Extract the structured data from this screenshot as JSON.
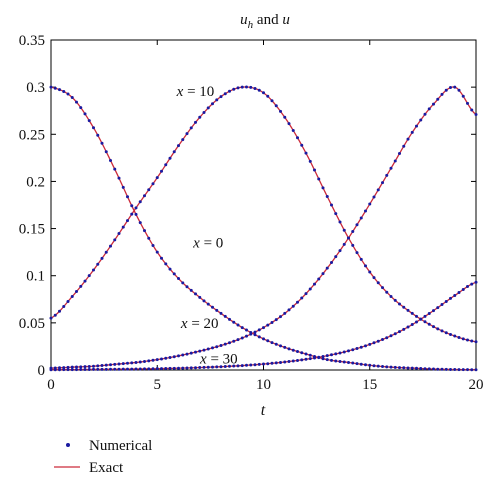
{
  "chart_data": {
    "type": "line",
    "title": "u_h and u",
    "title_parts": {
      "a": "u",
      "a_sub": "h",
      "mid": " and ",
      "b": "u"
    },
    "xlabel": "t",
    "ylabel": "",
    "xlim": [
      0,
      20
    ],
    "ylim": [
      0,
      0.35
    ],
    "xticks": [
      "0",
      "5",
      "10",
      "15",
      "20"
    ],
    "yticks": [
      "0",
      "0.05",
      "0.1",
      "0.15",
      "0.2",
      "0.25",
      "0.3",
      "0.35"
    ],
    "grid": false,
    "legend_placement": "bottom-left",
    "legend": [
      {
        "name": "Numerical",
        "marker": "dot",
        "color": "#1a1aa0"
      },
      {
        "name": "Exact",
        "marker": "line",
        "color": "#cc2a3a"
      }
    ],
    "series": [
      {
        "name": "x = 0",
        "x": [
          0,
          1,
          2,
          3,
          4,
          5,
          6,
          7,
          8,
          9,
          10,
          11,
          12,
          13,
          14,
          15,
          16,
          17,
          18,
          19,
          20
        ],
        "y": [
          0.3,
          0.289,
          0.257,
          0.213,
          0.165,
          0.125,
          0.097,
          0.077,
          0.06,
          0.045,
          0.033,
          0.024,
          0.017,
          0.011,
          0.008,
          0.005,
          0.003,
          0.002,
          0.001,
          0.0005,
          0.0003
        ]
      },
      {
        "name": "x = 10",
        "x": [
          0,
          1,
          2,
          3,
          4,
          5,
          6,
          7,
          8,
          9,
          10,
          11,
          12,
          13,
          14,
          15,
          16,
          17,
          18,
          19,
          20
        ],
        "y": [
          0.055,
          0.078,
          0.106,
          0.138,
          0.172,
          0.204,
          0.238,
          0.268,
          0.29,
          0.3,
          0.294,
          0.268,
          0.23,
          0.184,
          0.14,
          0.104,
          0.078,
          0.06,
          0.046,
          0.036,
          0.03
        ]
      },
      {
        "name": "x = 20",
        "x": [
          0,
          1,
          2,
          3,
          4,
          5,
          6,
          7,
          8,
          9,
          10,
          11,
          12,
          13,
          14,
          15,
          16,
          17,
          18,
          19,
          20
        ],
        "y": [
          0.002,
          0.003,
          0.004,
          0.006,
          0.008,
          0.011,
          0.015,
          0.02,
          0.026,
          0.034,
          0.045,
          0.06,
          0.081,
          0.108,
          0.14,
          0.176,
          0.214,
          0.252,
          0.282,
          0.3,
          0.271
        ]
      },
      {
        "name": "x = 30",
        "x": [
          0,
          1,
          2,
          3,
          4,
          5,
          6,
          7,
          8,
          9,
          10,
          11,
          12,
          13,
          14,
          15,
          16,
          17,
          18,
          19,
          20
        ],
        "y": [
          0.0003,
          0.0004,
          0.0006,
          0.0008,
          0.001,
          0.0014,
          0.0019,
          0.0026,
          0.0035,
          0.0047,
          0.0063,
          0.0085,
          0.0114,
          0.0152,
          0.0203,
          0.0272,
          0.0363,
          0.0482,
          0.063,
          0.079,
          0.093
        ]
      }
    ],
    "annotations": [
      {
        "text": "x = 10",
        "series": "x = 10",
        "at_x": 6.8,
        "at_y": 0.296
      },
      {
        "text": "x = 0",
        "series": "x = 0",
        "at_x": 7.4,
        "at_y": 0.135
      },
      {
        "text": "x = 20",
        "series": "x = 20",
        "at_x": 7.0,
        "at_y": 0.05
      },
      {
        "text": "x = 30",
        "series": "x = 30",
        "at_x": 7.9,
        "at_y": 0.012
      }
    ]
  }
}
